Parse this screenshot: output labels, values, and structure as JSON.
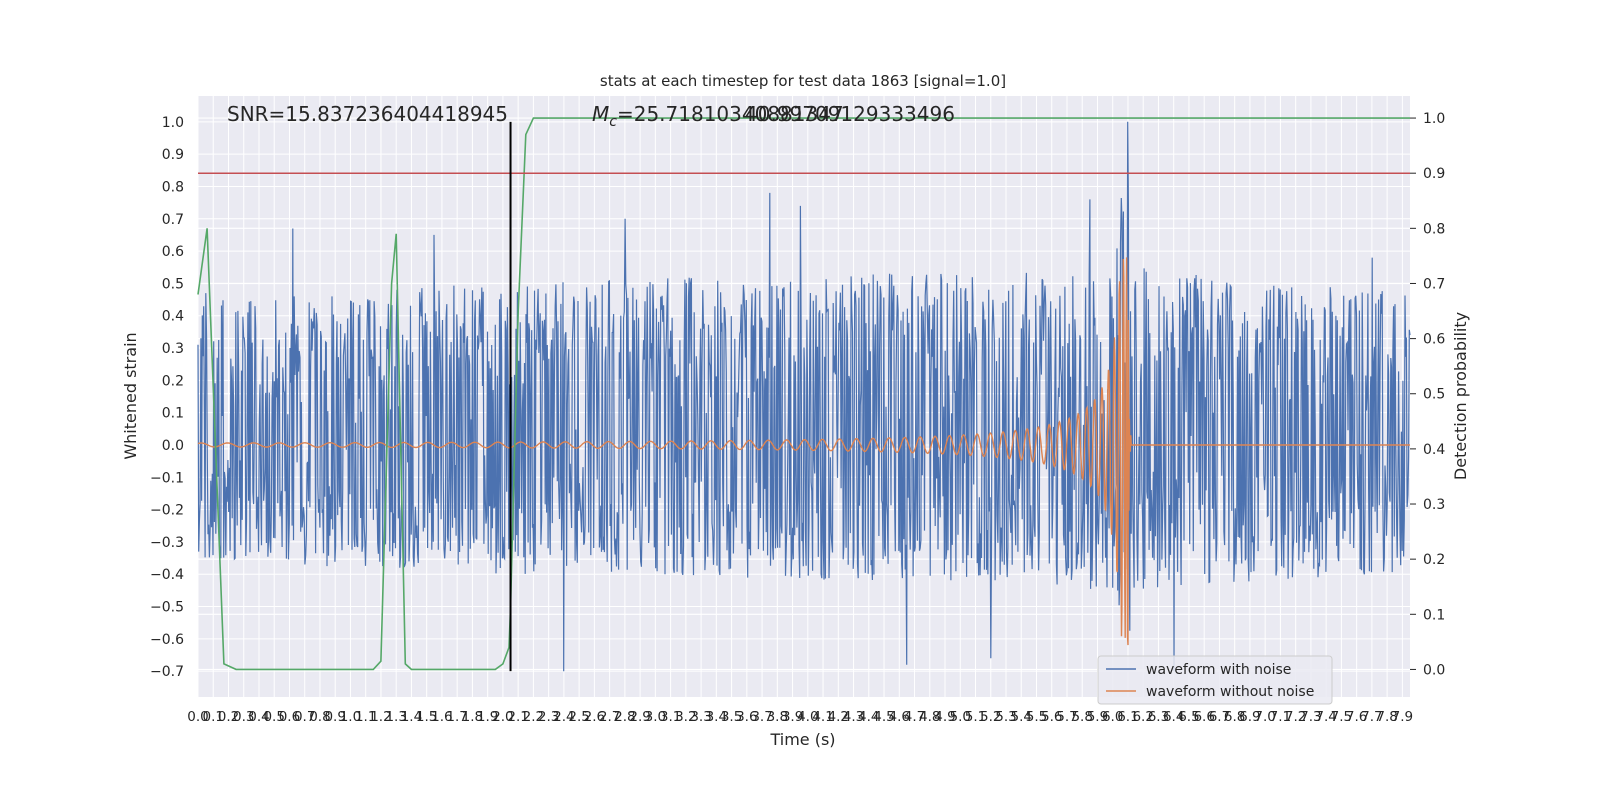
{
  "chart_data": {
    "type": "line",
    "title": "stats at each timestep for test data 1863 [signal=1.0]",
    "xlabel": "Time (s)",
    "ylabel": "Whitened strain",
    "ylabel_right": "Detection probability",
    "xlim": [
      0.0,
      7.95
    ],
    "ylim": [
      -0.78,
      1.08
    ],
    "ylim_right": [
      -0.05,
      1.04
    ],
    "x_ticks": [
      0.0,
      0.1,
      0.2,
      0.3,
      0.4,
      0.5,
      0.6,
      0.7,
      0.8,
      0.9,
      1.0,
      1.1,
      1.2,
      1.3,
      1.4,
      1.5,
      1.6,
      1.7,
      1.8,
      1.9,
      2.0,
      2.1,
      2.2,
      2.3,
      2.4,
      2.5,
      2.6,
      2.7,
      2.8,
      2.9,
      3.0,
      3.1,
      3.2,
      3.3,
      3.4,
      3.5,
      3.6,
      3.7,
      3.8,
      3.9,
      4.0,
      4.1,
      4.2,
      4.3,
      4.4,
      4.5,
      4.6,
      4.7,
      4.8,
      4.9,
      5.0,
      5.1,
      5.2,
      5.3,
      5.4,
      5.5,
      5.6,
      5.7,
      5.8,
      5.9,
      6.0,
      6.1,
      6.2,
      6.3,
      6.4,
      6.5,
      6.6,
      6.7,
      6.8,
      6.9,
      7.0,
      7.1,
      7.2,
      7.3,
      7.4,
      7.5,
      7.6,
      7.7,
      7.8,
      7.9
    ],
    "x_tick_labels": [
      "0.0",
      "0.1",
      "0.2",
      "0.3",
      "0.4",
      "0.5",
      "0.6",
      "0.7",
      "0.8",
      "0.9",
      "1.0",
      "1.1",
      "1.2",
      "1.3",
      "1.4",
      "1.5",
      "1.6",
      "1.7",
      "1.8",
      "1.9",
      "2.0",
      "2.1",
      "2.2",
      "2.3",
      "2.4",
      "2.5",
      "2.6",
      "2.7",
      "2.8",
      "2.9",
      "3.0",
      "3.1",
      "3.2",
      "3.3",
      "3.4",
      "3.5",
      "3.6",
      "3.7",
      "3.8",
      "3.9",
      "4.0",
      "4.1",
      "4.2",
      "4.3",
      "4.4",
      "4.5",
      "4.6",
      "4.7",
      "4.8",
      "4.9",
      "5.0",
      "5.1",
      "5.2",
      "5.3",
      "5.4",
      "5.5",
      "5.6",
      "5.7",
      "5.8",
      "5.9",
      "6.0",
      "6.1",
      "6.2",
      "6.3",
      "6.4",
      "6.5",
      "6.6",
      "6.7",
      "6.8",
      "6.9",
      "7.0",
      "7.1",
      "7.2",
      "7.3",
      "7.4",
      "7.5",
      "7.6",
      "7.7",
      "7.8",
      "7.9"
    ],
    "y_ticks": [
      -0.7,
      -0.6,
      -0.5,
      -0.4,
      -0.3,
      -0.2,
      -0.1,
      0.0,
      0.1,
      0.2,
      0.3,
      0.4,
      0.5,
      0.6,
      0.7,
      0.8,
      0.9,
      1.0
    ],
    "y_tick_labels": [
      "−0.7",
      "−0.6",
      "−0.5",
      "−0.4",
      "−0.3",
      "−0.2",
      "−0.1",
      "0.0",
      "0.1",
      "0.2",
      "0.3",
      "0.4",
      "0.5",
      "0.6",
      "0.7",
      "0.8",
      "0.9",
      "1.0"
    ],
    "y_right_ticks": [
      0.0,
      0.1,
      0.2,
      0.3,
      0.4,
      0.5,
      0.6,
      0.7,
      0.8,
      0.9,
      1.0
    ],
    "y_right_tick_labels": [
      "0.0",
      "0.1",
      "0.2",
      "0.3",
      "0.4",
      "0.5",
      "0.6",
      "0.7",
      "0.8",
      "0.9",
      "1.0"
    ],
    "grid": true,
    "legend_position": "lower-right",
    "series": [
      {
        "name": "waveform with noise",
        "color": "#4c72b0",
        "axis": "left",
        "envelope": [
          [
            0.0,
            -0.35,
            0.45
          ],
          [
            1.0,
            -0.38,
            0.48
          ],
          [
            2.0,
            -0.4,
            0.5
          ],
          [
            3.0,
            -0.4,
            0.52
          ],
          [
            4.0,
            -0.42,
            0.52
          ],
          [
            5.0,
            -0.42,
            0.54
          ],
          [
            6.0,
            -0.45,
            0.55
          ],
          [
            6.1,
            -0.62,
            1.0
          ],
          [
            6.15,
            -0.45,
            0.55
          ],
          [
            7.0,
            -0.42,
            0.5
          ],
          [
            7.95,
            -0.4,
            0.48
          ]
        ],
        "peaks": [
          [
            0.05,
            0.47
          ],
          [
            0.62,
            0.67
          ],
          [
            1.55,
            0.65
          ],
          [
            2.8,
            0.7
          ],
          [
            3.75,
            0.78
          ],
          [
            3.95,
            0.74
          ],
          [
            5.85,
            0.76
          ],
          [
            6.1,
            1.0
          ],
          [
            7.7,
            0.58
          ],
          [
            2.4,
            -0.7
          ],
          [
            6.4,
            -0.7
          ],
          [
            5.2,
            -0.66
          ],
          [
            4.65,
            -0.68
          ]
        ]
      },
      {
        "name": "waveform without noise",
        "color": "#dd8452",
        "axis": "left",
        "model": "chirp",
        "merger_time": 6.1,
        "peak_values": [
          0.6,
          -0.63
        ],
        "early_amplitude": 0.006,
        "post_merger_value": 0.0
      },
      {
        "name": "",
        "color": "#55a868",
        "axis": "right",
        "x": [
          0.0,
          0.06,
          0.17,
          0.25,
          1.15,
          1.2,
          1.27,
          1.3,
          1.36,
          1.4,
          1.45,
          1.95,
          2.0,
          2.04,
          2.05,
          2.1,
          2.15,
          2.2,
          7.95
        ],
        "y": [
          0.68,
          0.8,
          0.01,
          0.0,
          0.0,
          0.015,
          0.7,
          0.79,
          0.01,
          0.0,
          0.0,
          0.0,
          0.01,
          0.04,
          0.11,
          0.65,
          0.97,
          1.0,
          1.0
        ]
      }
    ],
    "hlines": [
      {
        "y_right": 0.9,
        "color": "#c44e52"
      }
    ],
    "vlines": [
      {
        "x": 2.05,
        "color": "#000000"
      }
    ],
    "annotations": [
      {
        "text": "SNR=15.837236404418945"
      },
      {
        "text_prefix": "M",
        "text_sub": "c",
        "text_rest": "=25.71810340881347"
      },
      {
        "text": "40.99709129333496"
      }
    ]
  }
}
